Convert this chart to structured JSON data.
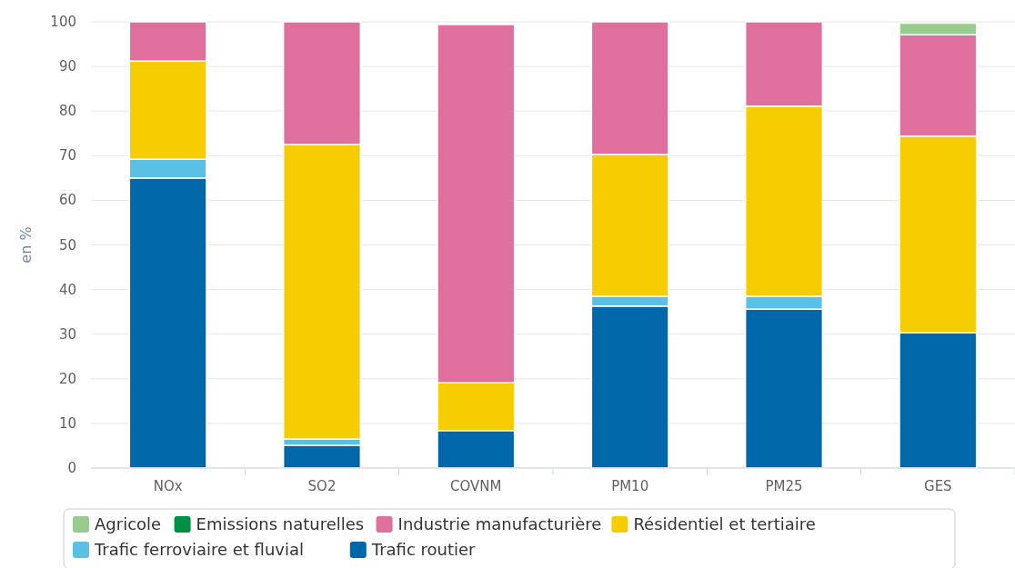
{
  "chart_data": {
    "type": "bar",
    "stacked": true,
    "ylabel": "en %",
    "categories": [
      "NOx",
      "SO2",
      "COVNM",
      "PM10",
      "PM25",
      "GES"
    ],
    "ylim": [
      0,
      100
    ],
    "yticks": [
      0,
      10,
      20,
      30,
      40,
      50,
      60,
      70,
      80,
      90,
      100
    ],
    "grid": "y",
    "legend": "bottom",
    "series": [
      {
        "name": "Trafic routier",
        "color": "#0068a8",
        "values": [
          65,
          5.1,
          8.4,
          36.3,
          35.6,
          30.3
        ]
      },
      {
        "name": "Trafic ferroviaire et fluvial",
        "color": "#5bc0e6",
        "values": [
          4.2,
          1.4,
          null,
          2.2,
          2.9,
          null
        ]
      },
      {
        "name": "Résidentiel et tertiaire",
        "color": "#f5cd00",
        "values": [
          22,
          66,
          10.7,
          31.8,
          42.6,
          44.1
        ]
      },
      {
        "name": "Industrie manufacturière",
        "color": "#df6f9c",
        "values": [
          8.8,
          27.5,
          80.3,
          29.7,
          18.9,
          22.7
        ]
      },
      {
        "name": "Emissions naturelles",
        "color": "#009043",
        "values": [
          0,
          0,
          0,
          0,
          0,
          0
        ]
      },
      {
        "name": "Agricole",
        "color": "#98cc8f",
        "values": [
          0,
          0,
          0,
          0,
          0,
          2.6
        ]
      }
    ]
  }
}
